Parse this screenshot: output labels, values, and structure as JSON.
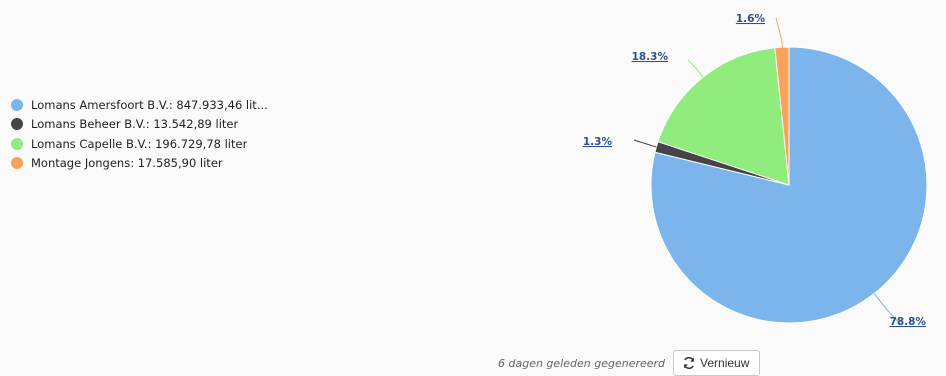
{
  "chart_data": {
    "type": "pie",
    "series": [
      {
        "name": "Lomans Amersfoort B.V.",
        "legend_text": "Lomans Amersfoort B.V.: 847.933,46 lit...",
        "value": 847933.46,
        "percent_label": "78.8%",
        "color": "#7cb5ec"
      },
      {
        "name": "Lomans Beheer B.V.",
        "legend_text": "Lomans Beheer B.V.: 13.542,89 liter",
        "value": 13542.89,
        "percent_label": "1.3%",
        "color": "#434348"
      },
      {
        "name": "Lomans Capelle B.V.",
        "legend_text": "Lomans Capelle B.V.: 196.729,78 liter",
        "value": 196729.78,
        "percent_label": "18.3%",
        "color": "#90ed7d"
      },
      {
        "name": "Montage Jongens",
        "legend_text": "Montage Jongens: 17.585,90 liter",
        "value": 17585.9,
        "percent_label": "1.6%",
        "color": "#f7a35c"
      }
    ],
    "legend_placement": "left"
  },
  "footer": {
    "generated_text": "6 dagen geleden gegenereerd",
    "refresh_label": "Vernieuw"
  },
  "icons": {
    "refresh": "refresh-icon"
  }
}
